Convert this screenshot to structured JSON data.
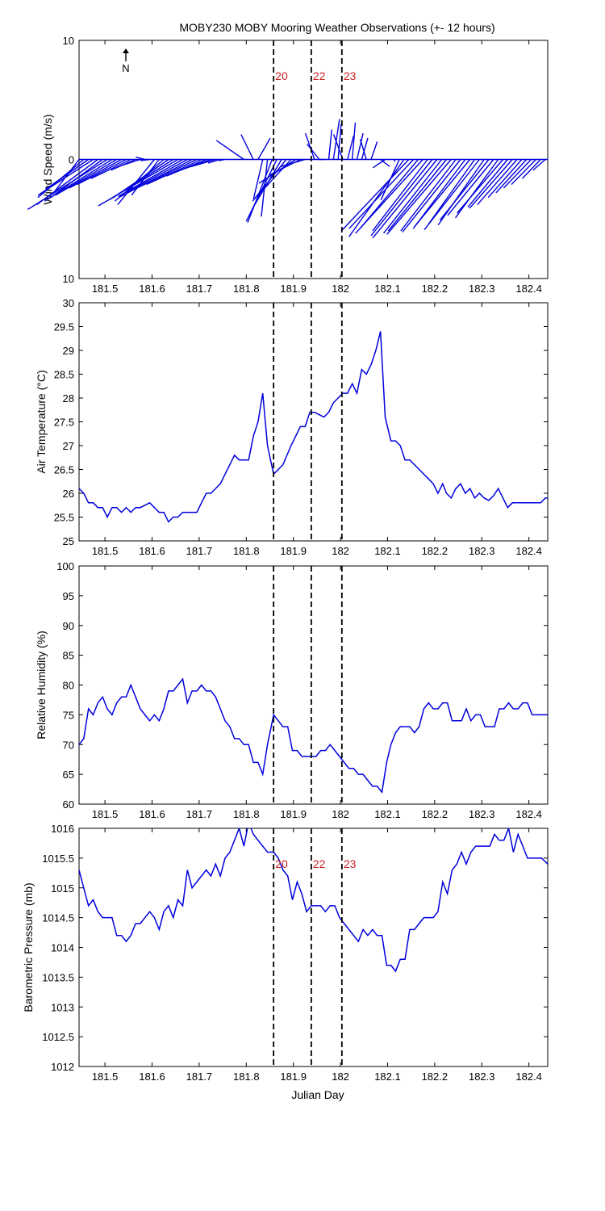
{
  "figure": {
    "title": "MOBY230 MOBY Mooring Weather Observations (+- 12 hours)",
    "north_label": "N",
    "x_label": "Julian Day",
    "line_color": "#0000dd",
    "marker_color": "#cc2222"
  },
  "chart_data": [
    {
      "type": "vector",
      "ylabel": "Wind Speed (m/s)",
      "xlim": [
        181.445,
        182.44
      ],
      "ylim": [
        -10,
        10
      ],
      "yticks": [
        10,
        0,
        10
      ],
      "xticks": [
        "181.5",
        "181.6",
        "181.7",
        "181.8",
        "181.9",
        "182",
        "182.1",
        "182.2",
        "182.3",
        "182.4"
      ],
      "markers": [
        {
          "x": 181.858,
          "label": "20"
        },
        {
          "x": 181.938,
          "label": "22"
        },
        {
          "x": 182.003,
          "label": "23"
        }
      ],
      "vectors": [
        [
          181.445,
          -0.8,
          -2.7
        ],
        [
          181.455,
          -1.5,
          -3.2
        ],
        [
          181.465,
          -1.4,
          -2.5
        ],
        [
          181.475,
          -1.8,
          -3.0
        ],
        [
          181.485,
          -2.0,
          -3.8
        ],
        [
          181.495,
          -1.7,
          -3.2
        ],
        [
          181.505,
          -2.6,
          -4.2
        ],
        [
          181.515,
          -2.2,
          -3.5
        ],
        [
          181.525,
          -2.0,
          -3.0
        ],
        [
          181.535,
          -1.7,
          -2.4
        ],
        [
          181.545,
          -1.6,
          -2.1
        ],
        [
          181.555,
          -1.3,
          -1.6
        ],
        [
          181.565,
          -0.8,
          -0.9
        ],
        [
          181.575,
          -0.6,
          -0.5
        ],
        [
          181.585,
          -0.3,
          0.2
        ],
        [
          181.595,
          -0.3,
          -0.1
        ],
        [
          181.605,
          -1.2,
          -3.8
        ],
        [
          181.615,
          -0.9,
          -3.0
        ],
        [
          181.625,
          -1.6,
          -3.5
        ],
        [
          181.635,
          -1.8,
          -3.2
        ],
        [
          181.645,
          -2.1,
          -3.4
        ],
        [
          181.655,
          -2.6,
          -3.9
        ],
        [
          181.665,
          -2.1,
          -3.1
        ],
        [
          181.675,
          -2.0,
          -2.8
        ],
        [
          181.685,
          -2.4,
          -3.2
        ],
        [
          181.695,
          -2.2,
          -2.7
        ],
        [
          181.705,
          -1.8,
          -2.1
        ],
        [
          181.715,
          -1.3,
          -1.4
        ],
        [
          181.725,
          -1.1,
          -1.0
        ],
        [
          181.735,
          -0.8,
          -0.6
        ],
        [
          181.745,
          -0.4,
          -0.3
        ],
        [
          181.755,
          -0.2,
          -0.1
        ],
        [
          181.795,
          -0.9,
          1.6
        ],
        [
          181.805,
          0.0,
          0.0
        ],
        [
          181.815,
          -0.4,
          2.1
        ],
        [
          181.825,
          0.4,
          1.8
        ],
        [
          181.835,
          -0.3,
          -3.3
        ],
        [
          181.845,
          -0.2,
          -4.8
        ],
        [
          181.855,
          -0.8,
          -5.3
        ],
        [
          181.865,
          -1.0,
          -5.2
        ],
        [
          181.875,
          -0.9,
          -3.9
        ],
        [
          181.885,
          -1.1,
          -3.5
        ],
        [
          181.895,
          -1.0,
          -2.8
        ],
        [
          181.905,
          -1.2,
          -2.0
        ],
        [
          181.915,
          -1.0,
          -1.3
        ],
        [
          181.925,
          -0.8,
          -0.6
        ],
        [
          181.945,
          -0.3,
          2.2
        ],
        [
          181.955,
          -0.4,
          1.3
        ],
        [
          181.965,
          -0.2,
          0.0
        ],
        [
          181.975,
          0.1,
          2.5
        ],
        [
          181.985,
          0.2,
          3.4
        ],
        [
          181.995,
          0.1,
          3.0
        ],
        [
          182.005,
          -0.3,
          2.1
        ],
        [
          182.015,
          0.2,
          2.0
        ],
        [
          182.025,
          0.1,
          3.1
        ],
        [
          182.035,
          0.2,
          2.2
        ],
        [
          182.045,
          0.2,
          1.8
        ],
        [
          182.055,
          -0.2,
          1.7
        ],
        [
          182.065,
          0.2,
          1.5
        ],
        [
          182.075,
          0.0,
          0.0
        ],
        [
          182.085,
          0.3,
          -0.6
        ],
        [
          182.095,
          -0.4,
          -0.7
        ],
        [
          182.105,
          0.0,
          0.0
        ],
        [
          182.115,
          0.0,
          -0.2
        ],
        [
          182.125,
          -0.6,
          -3.4
        ],
        [
          182.135,
          -1.8,
          -6.5
        ],
        [
          182.145,
          -2.2,
          -6.0
        ],
        [
          182.155,
          -2.1,
          -5.8
        ],
        [
          182.165,
          -1.9,
          -5.8
        ],
        [
          182.175,
          -2.2,
          -6.2
        ],
        [
          182.185,
          -1.8,
          -6.0
        ],
        [
          182.195,
          -2.0,
          -6.4
        ],
        [
          182.205,
          -2.1,
          -6.6
        ],
        [
          182.215,
          -1.9,
          -6.2
        ],
        [
          182.225,
          -1.9,
          -6.0
        ],
        [
          182.235,
          -2.1,
          -6.3
        ],
        [
          182.245,
          -1.8,
          -6.0
        ],
        [
          182.255,
          -1.9,
          -6.1
        ],
        [
          182.265,
          -1.7,
          -5.8
        ],
        [
          182.275,
          -1.8,
          -5.6
        ],
        [
          182.285,
          -1.5,
          -5.4
        ],
        [
          182.295,
          -1.8,
          -5.9
        ],
        [
          182.305,
          -1.5,
          -5.5
        ],
        [
          182.315,
          -1.6,
          -5.1
        ],
        [
          182.325,
          -1.5,
          -4.7
        ],
        [
          182.335,
          -1.4,
          -4.9
        ],
        [
          182.345,
          -1.5,
          -4.5
        ],
        [
          182.355,
          -1.3,
          -4.0
        ],
        [
          182.365,
          -1.4,
          -4.1
        ],
        [
          182.375,
          -1.3,
          -3.8
        ],
        [
          182.385,
          -1.1,
          -3.2
        ],
        [
          182.395,
          -1.0,
          -2.8
        ],
        [
          182.405,
          -0.9,
          -2.4
        ],
        [
          182.415,
          -0.8,
          -2.1
        ],
        [
          182.425,
          -0.6,
          -1.6
        ],
        [
          182.435,
          -0.4,
          -0.9
        ]
      ]
    },
    {
      "type": "line",
      "ylabel": "Air Temperature (°C)",
      "xlim": [
        181.445,
        182.44
      ],
      "ylim": [
        25,
        30
      ],
      "yticks": [
        "25",
        "25.5",
        "26",
        "26.5",
        "27",
        "27.5",
        "28",
        "28.5",
        "29",
        "29.5",
        "30"
      ],
      "xticks": [
        "181.5",
        "181.6",
        "181.7",
        "181.8",
        "181.9",
        "182",
        "182.1",
        "182.2",
        "182.3",
        "182.4"
      ],
      "markers": [
        {
          "x": 181.858
        },
        {
          "x": 181.938
        },
        {
          "x": 182.003
        }
      ],
      "x": [
        181.445,
        181.455,
        181.465,
        181.475,
        181.485,
        181.495,
        181.505,
        181.515,
        181.525,
        181.535,
        181.545,
        181.555,
        181.565,
        181.575,
        181.585,
        181.595,
        181.605,
        181.615,
        181.625,
        181.635,
        181.645,
        181.655,
        181.665,
        181.675,
        181.685,
        181.695,
        181.705,
        181.715,
        181.725,
        181.735,
        181.745,
        181.755,
        181.765,
        181.775,
        181.785,
        181.795,
        181.805,
        181.815,
        181.825,
        181.835,
        181.845,
        181.858,
        181.868,
        181.878,
        181.895,
        181.905,
        181.915,
        181.925,
        181.935,
        181.945,
        181.955,
        181.965,
        181.975,
        181.985,
        181.995,
        182.005,
        182.015,
        182.025,
        182.035,
        182.045,
        182.055,
        182.065,
        182.075,
        182.085,
        182.095,
        182.107,
        182.117,
        182.127,
        182.137,
        182.147,
        182.157,
        182.167,
        182.177,
        182.187,
        182.197,
        182.207,
        182.217,
        182.225,
        182.235,
        182.245,
        182.255,
        182.265,
        182.275,
        182.285,
        182.295,
        182.305,
        182.315,
        182.325,
        182.335,
        182.345,
        182.355,
        182.365,
        182.375,
        182.385,
        182.395,
        182.405,
        182.415,
        182.425,
        182.435,
        182.44
      ],
      "values": [
        26.1,
        26.0,
        25.8,
        25.8,
        25.7,
        25.7,
        25.5,
        25.7,
        25.7,
        25.6,
        25.7,
        25.6,
        25.7,
        25.7,
        25.75,
        25.8,
        25.7,
        25.6,
        25.6,
        25.4,
        25.5,
        25.5,
        25.6,
        25.6,
        25.6,
        25.6,
        25.8,
        26.0,
        26.0,
        26.1,
        26.2,
        26.4,
        26.6,
        26.8,
        26.7,
        26.7,
        26.7,
        27.2,
        27.5,
        28.1,
        27.0,
        26.4,
        26.5,
        26.6,
        27.0,
        27.2,
        27.4,
        27.4,
        27.7,
        27.7,
        27.65,
        27.6,
        27.7,
        27.9,
        28.0,
        28.1,
        28.1,
        28.3,
        28.1,
        28.6,
        28.5,
        28.7,
        29.0,
        29.4,
        27.6,
        27.1,
        27.1,
        27.0,
        26.7,
        26.7,
        26.6,
        26.5,
        26.4,
        26.3,
        26.2,
        26.0,
        26.2,
        26.0,
        25.9,
        26.1,
        26.2,
        26.0,
        26.1,
        25.9,
        26.0,
        25.9,
        25.85,
        25.95,
        26.1,
        25.9,
        25.7,
        25.8,
        25.8,
        25.8,
        25.8,
        25.8,
        25.8,
        25.8,
        25.9,
        25.9
      ]
    },
    {
      "type": "line",
      "ylabel": "Relative Humidity (%)",
      "xlim": [
        181.445,
        182.44
      ],
      "ylim": [
        60,
        100
      ],
      "yticks": [
        "60",
        "65",
        "70",
        "75",
        "80",
        "85",
        "90",
        "95",
        "100"
      ],
      "xticks": [
        "181.5",
        "181.6",
        "181.7",
        "181.8",
        "181.9",
        "182",
        "182.1",
        "182.2",
        "182.3",
        "182.4"
      ],
      "markers": [
        {
          "x": 181.858
        },
        {
          "x": 181.938
        },
        {
          "x": 182.003
        }
      ],
      "x": [
        181.445,
        181.455,
        181.465,
        181.475,
        181.485,
        181.495,
        181.505,
        181.515,
        181.525,
        181.535,
        181.545,
        181.555,
        181.565,
        181.575,
        181.585,
        181.595,
        181.605,
        181.615,
        181.625,
        181.635,
        181.645,
        181.655,
        181.665,
        181.675,
        181.685,
        181.695,
        181.705,
        181.715,
        181.725,
        181.735,
        181.745,
        181.755,
        181.765,
        181.775,
        181.785,
        181.795,
        181.805,
        181.815,
        181.825,
        181.835,
        181.845,
        181.858,
        181.868,
        181.878,
        181.888,
        181.898,
        181.908,
        181.918,
        181.928,
        181.938,
        181.948,
        181.958,
        181.968,
        181.978,
        181.988,
        181.998,
        182.008,
        182.018,
        182.028,
        182.038,
        182.048,
        182.058,
        182.068,
        182.078,
        182.088,
        182.098,
        182.107,
        182.117,
        182.127,
        182.137,
        182.147,
        182.157,
        182.167,
        182.177,
        182.187,
        182.197,
        182.207,
        182.217,
        182.227,
        182.237,
        182.247,
        182.257,
        182.267,
        182.277,
        182.287,
        182.297,
        182.307,
        182.317,
        182.327,
        182.337,
        182.347,
        182.357,
        182.367,
        182.377,
        182.387,
        182.397,
        182.407,
        182.417,
        182.427,
        182.44
      ],
      "values": [
        70,
        71,
        76,
        75,
        77,
        78,
        76,
        75,
        77,
        78,
        78,
        80,
        78,
        76,
        75,
        74,
        75,
        74,
        76,
        79,
        79,
        80,
        81,
        77,
        79,
        79,
        80,
        79,
        79,
        78,
        76,
        74,
        73,
        71,
        71,
        70,
        70,
        67,
        67,
        65,
        70,
        75,
        74,
        73,
        73,
        69,
        69,
        68,
        68,
        68,
        68,
        69,
        69,
        70,
        69,
        68,
        67,
        66,
        66,
        65,
        65,
        64,
        63,
        63,
        62,
        67,
        70,
        72,
        73,
        73,
        73,
        72,
        73,
        76,
        77,
        76,
        76,
        77,
        77,
        74,
        74,
        74,
        76,
        74,
        75,
        75,
        73,
        73,
        73,
        76,
        76,
        77,
        76,
        76,
        77,
        77,
        75,
        75,
        75,
        75
      ]
    },
    {
      "type": "line",
      "ylabel": "Barometric Pressure (mb)",
      "xlim": [
        181.445,
        182.44
      ],
      "ylim": [
        1012,
        1016
      ],
      "yticks": [
        "1012",
        "1012.5",
        "1013",
        "1013.5",
        "1014",
        "1014.5",
        "1015",
        "1015.5",
        "1016"
      ],
      "xticks": [
        "181.5",
        "181.6",
        "181.7",
        "181.8",
        "181.9",
        "182",
        "182.1",
        "182.2",
        "182.3",
        "182.4"
      ],
      "markers": [
        {
          "x": 181.858,
          "label": "20"
        },
        {
          "x": 181.938,
          "label": "22"
        },
        {
          "x": 182.003,
          "label": "23"
        }
      ],
      "x": [
        181.445,
        181.455,
        181.465,
        181.475,
        181.485,
        181.495,
        181.505,
        181.515,
        181.525,
        181.535,
        181.545,
        181.555,
        181.565,
        181.575,
        181.585,
        181.595,
        181.605,
        181.615,
        181.625,
        181.635,
        181.645,
        181.655,
        181.665,
        181.675,
        181.685,
        181.695,
        181.705,
        181.715,
        181.725,
        181.735,
        181.745,
        181.755,
        181.765,
        181.775,
        181.785,
        181.795,
        181.805,
        181.815,
        181.825,
        181.835,
        181.845,
        181.858,
        181.868,
        181.878,
        181.888,
        181.898,
        181.908,
        181.918,
        181.928,
        181.938,
        181.948,
        181.958,
        181.968,
        181.978,
        181.988,
        181.998,
        182.008,
        182.018,
        182.028,
        182.038,
        182.048,
        182.058,
        182.068,
        182.078,
        182.088,
        182.098,
        182.107,
        182.117,
        182.127,
        182.137,
        182.147,
        182.157,
        182.167,
        182.177,
        182.187,
        182.197,
        182.207,
        182.217,
        182.227,
        182.237,
        182.247,
        182.257,
        182.267,
        182.277,
        182.287,
        182.297,
        182.307,
        182.317,
        182.327,
        182.337,
        182.347,
        182.357,
        182.367,
        182.377,
        182.387,
        182.397,
        182.407,
        182.417,
        182.427,
        182.44
      ],
      "values": [
        1015.3,
        1015.0,
        1014.7,
        1014.8,
        1014.6,
        1014.5,
        1014.5,
        1014.5,
        1014.2,
        1014.2,
        1014.1,
        1014.2,
        1014.4,
        1014.4,
        1014.5,
        1014.6,
        1014.5,
        1014.3,
        1014.6,
        1014.7,
        1014.5,
        1014.8,
        1014.7,
        1015.3,
        1015.0,
        1015.1,
        1015.2,
        1015.3,
        1015.2,
        1015.4,
        1015.2,
        1015.5,
        1015.6,
        1015.8,
        1016.0,
        1015.7,
        1016.1,
        1015.9,
        1015.8,
        1015.7,
        1015.6,
        1015.6,
        1015.5,
        1015.3,
        1015.2,
        1014.8,
        1015.1,
        1014.9,
        1014.6,
        1014.7,
        1014.7,
        1014.7,
        1014.6,
        1014.7,
        1014.7,
        1014.5,
        1014.4,
        1014.3,
        1014.2,
        1014.1,
        1014.3,
        1014.2,
        1014.3,
        1014.2,
        1014.2,
        1013.7,
        1013.7,
        1013.6,
        1013.8,
        1013.8,
        1014.3,
        1014.3,
        1014.4,
        1014.5,
        1014.5,
        1014.5,
        1014.6,
        1015.1,
        1014.9,
        1015.3,
        1015.4,
        1015.6,
        1015.4,
        1015.6,
        1015.7,
        1015.7,
        1015.7,
        1015.7,
        1015.9,
        1015.8,
        1015.8,
        1016.0,
        1015.6,
        1015.9,
        1015.7,
        1015.5,
        1015.5,
        1015.5,
        1015.5,
        1015.4
      ]
    }
  ]
}
